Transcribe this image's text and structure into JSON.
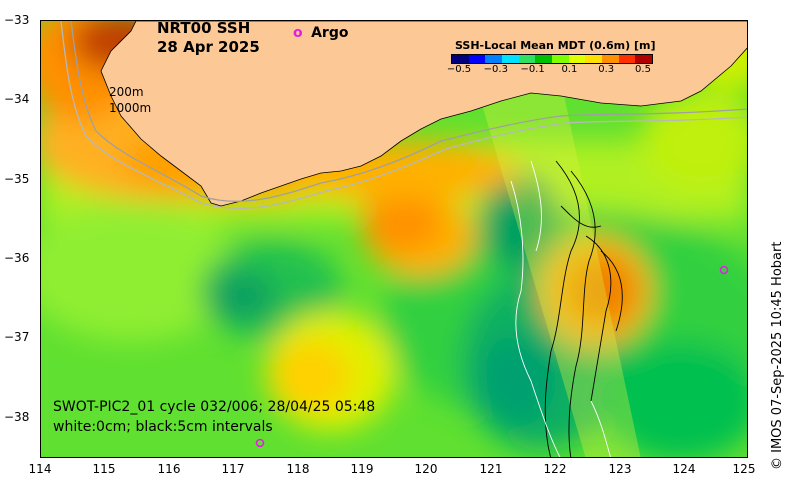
{
  "title": {
    "product": "NRT00 SSH",
    "date": "28 Apr 2025"
  },
  "argo_legend": {
    "symbol": "o",
    "label": "Argo",
    "color": "#e020e0"
  },
  "isobaths": {
    "shallow": "200m",
    "deep": "1000m"
  },
  "colorbar": {
    "title": "SSH-Local Mean MDT (0.6m) [m]",
    "ticks": [
      "−0.5",
      "−0.3",
      "−0.1",
      "0.1",
      "0.3",
      "0.5"
    ],
    "colors": [
      "#00007f",
      "#0000ff",
      "#0080ff",
      "#00e0ff",
      "#30e060",
      "#00c000",
      "#80ff00",
      "#e0ff00",
      "#ffe000",
      "#ff9000",
      "#ff3000",
      "#b00000"
    ]
  },
  "swot_caption": {
    "line1": "SWOT-PIC2_01 cycle 032/006; 28/04/25 05:48",
    "line2": "white:0cm; black:5cm intervals"
  },
  "credit": "© IMOS 07-Sep-2025 10:45 Hobart",
  "axes": {
    "lat_labels": [
      "−33",
      "−34",
      "−35",
      "−36",
      "−37",
      "−38"
    ],
    "lon_labels": [
      "114",
      "115",
      "116",
      "117",
      "118",
      "119",
      "120",
      "121",
      "122",
      "123",
      "124",
      "125"
    ]
  },
  "colors": {
    "land": "#fcc896",
    "contour_white": "#ffffff",
    "contour_black": "#000000"
  }
}
